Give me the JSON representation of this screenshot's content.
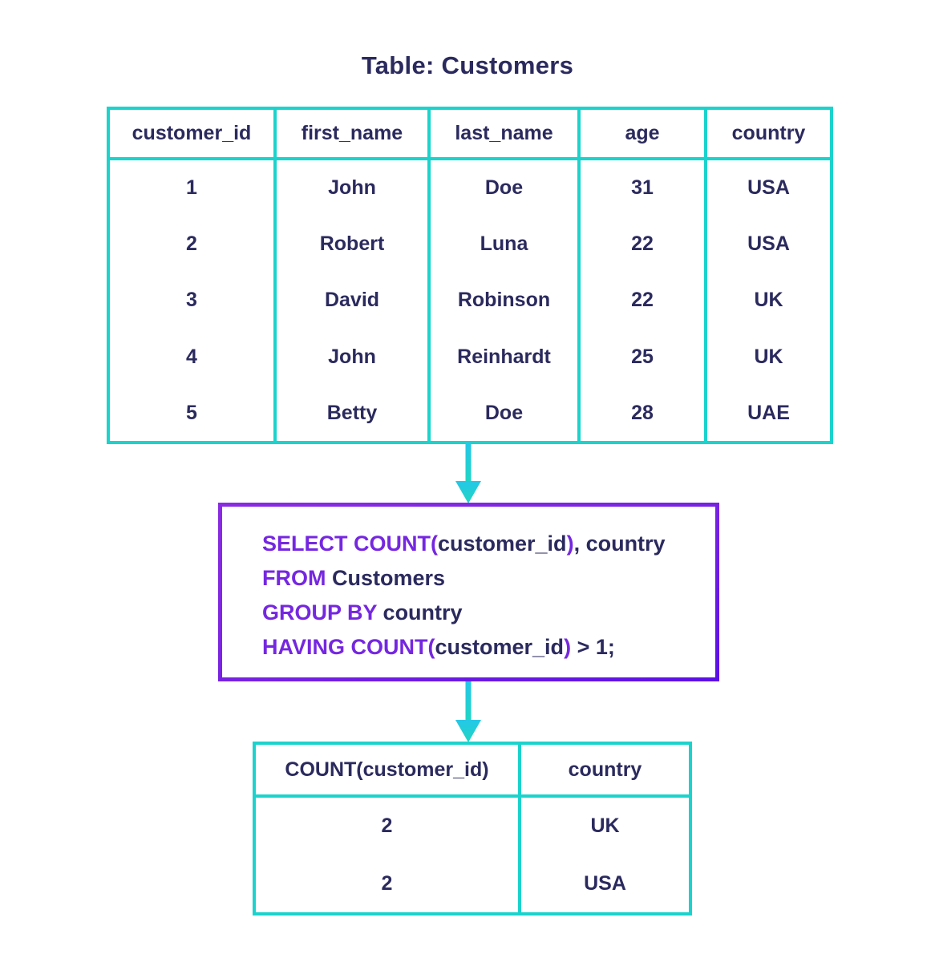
{
  "title": "Table: Customers",
  "colors": {
    "text_navy": "#2b2a5e",
    "keyword_purple": "#7527e0",
    "table_border_teal": "#1bd3cd",
    "query_border_purple_from": "#8a2be2",
    "query_border_purple_to": "#5c10e6",
    "arrow_cyan_from": "#25c7e8",
    "arrow_teal_to": "#1fd6c0",
    "background": "#ffffff"
  },
  "customers_table": {
    "headers": [
      "customer_id",
      "first_name",
      "last_name",
      "age",
      "country"
    ],
    "rows": [
      [
        "1",
        "John",
        "Doe",
        "31",
        "USA"
      ],
      [
        "2",
        "Robert",
        "Luna",
        "22",
        "USA"
      ],
      [
        "3",
        "David",
        "Robinson",
        "22",
        "UK"
      ],
      [
        "4",
        "John",
        "Reinhardt",
        "25",
        "UK"
      ],
      [
        "5",
        "Betty",
        "Doe",
        "28",
        "UAE"
      ]
    ]
  },
  "query": {
    "lines": [
      [
        {
          "t": "SELECT COUNT(",
          "c": "kw"
        },
        {
          "t": "customer_id",
          "c": "id"
        },
        {
          "t": ")",
          "c": "kw"
        },
        {
          "t": ", country",
          "c": "id"
        }
      ],
      [
        {
          "t": "FROM ",
          "c": "kw"
        },
        {
          "t": "Customers",
          "c": "id"
        }
      ],
      [
        {
          "t": "GROUP BY ",
          "c": "kw"
        },
        {
          "t": "country",
          "c": "id"
        }
      ],
      [
        {
          "t": "HAVING COUNT(",
          "c": "kw"
        },
        {
          "t": "customer_id",
          "c": "id"
        },
        {
          "t": ")",
          "c": "kw"
        },
        {
          "t": " > 1;",
          "c": "id"
        }
      ]
    ]
  },
  "result_table": {
    "headers": [
      "COUNT(customer_id)",
      "country"
    ],
    "rows": [
      [
        "2",
        "UK"
      ],
      [
        "2",
        "USA"
      ]
    ]
  }
}
